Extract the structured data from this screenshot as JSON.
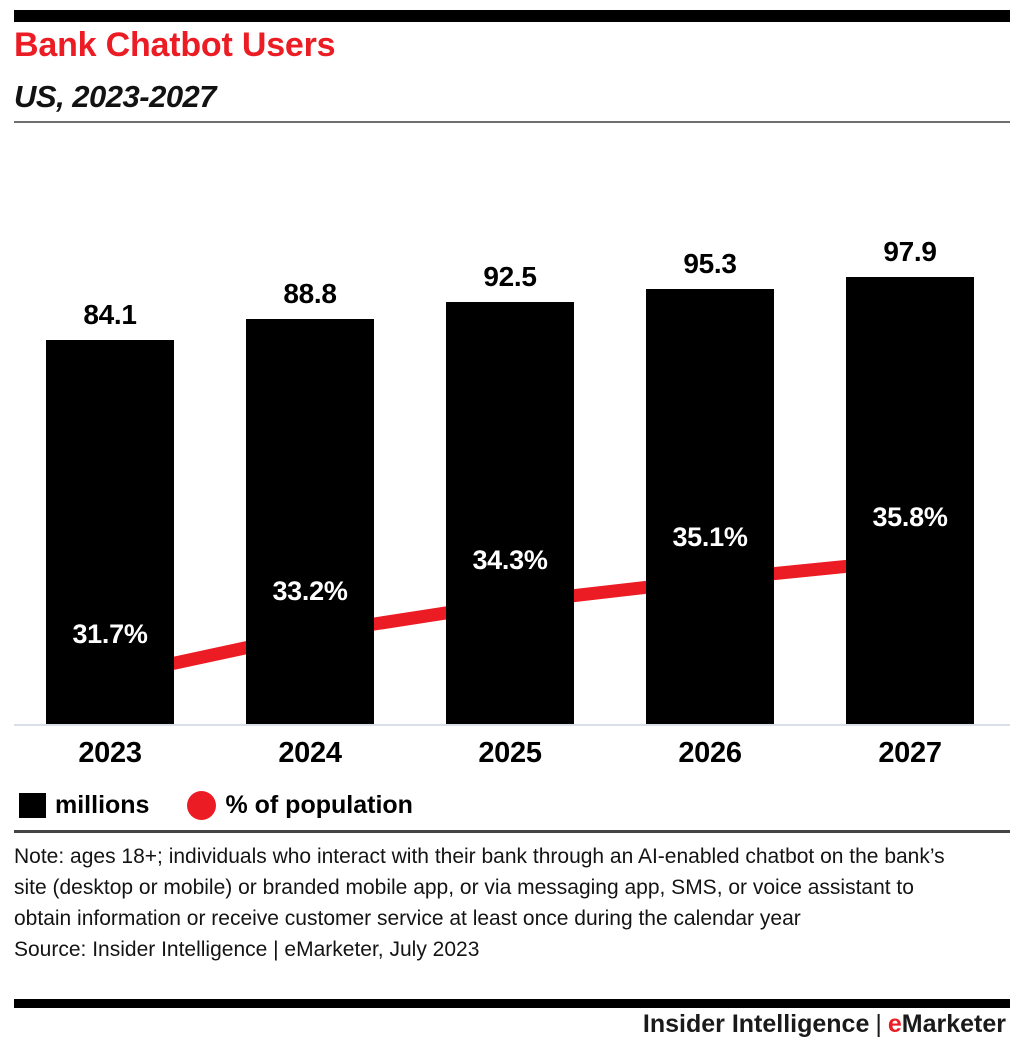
{
  "header": {
    "title": "Bank Chatbot Users",
    "subtitle": "US, 2023-2027"
  },
  "colors": {
    "accent_red": "#EC1C24",
    "bar_black": "#000000",
    "axis_line": "#D9DEE9",
    "title_divider": "#6E6E6E",
    "legend_rule": "#454545"
  },
  "chart_data": {
    "type": "bar",
    "title": "Bank Chatbot Users",
    "subtitle": "US, 2023-2027",
    "categories": [
      "2023",
      "2024",
      "2025",
      "2026",
      "2027"
    ],
    "series": [
      {
        "name": "millions",
        "type": "bar",
        "color": "#000000",
        "values": [
          84.1,
          88.8,
          92.5,
          95.3,
          97.9
        ],
        "labels": [
          "84.1",
          "88.8",
          "92.5",
          "95.3",
          "97.9"
        ],
        "label_position": "above-bar"
      },
      {
        "name": "% of population",
        "type": "line",
        "color": "#EC1C24",
        "marker": "circle",
        "values": [
          31.7,
          33.2,
          34.3,
          35.1,
          35.8
        ],
        "labels": [
          "31.7%",
          "33.2%",
          "34.3%",
          "35.1%",
          "35.8%"
        ],
        "label_position": "above-point"
      }
    ],
    "xlabel": "",
    "ylabel": "",
    "bar_axis_range": [
      0,
      100
    ],
    "grid": false,
    "legend_position": "bottom-left",
    "legend": [
      {
        "label": "millions",
        "swatch": "square",
        "color": "#000000"
      },
      {
        "label": "% of population",
        "swatch": "circle",
        "color": "#EC1C24"
      }
    ]
  },
  "note": "Note: ages 18+; individuals who interact with their bank through an AI-enabled chatbot on the bank’s site (desktop or mobile) or branded mobile app, or via messaging app, SMS, or voice assistant to obtain information or receive customer service at least once during the calendar year",
  "source": "Source: Insider Intelligence | eMarketer, July 2023",
  "footer": {
    "brand_left": "Insider Intelligence",
    "separator": "|",
    "brand_red": "e",
    "brand_rest": "Marketer"
  }
}
